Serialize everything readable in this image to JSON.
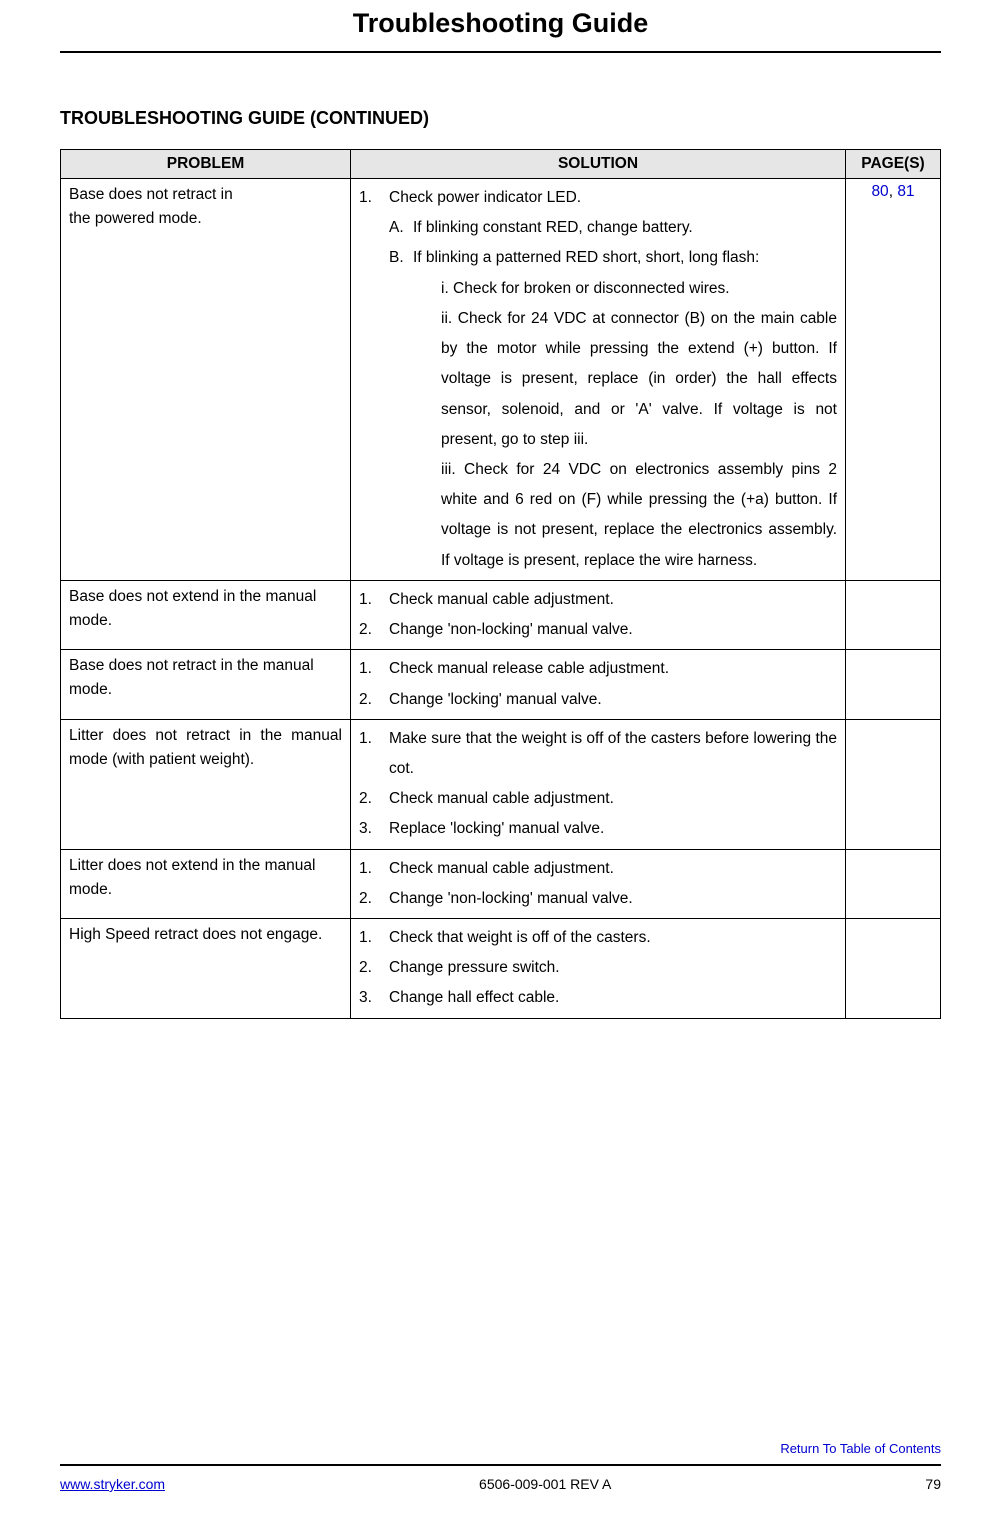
{
  "title": "Troubleshooting Guide",
  "subtitle": "TROUBLESHOOTING GUIDE (CONTINUED)",
  "table": {
    "headers": {
      "problem": "PROBLEM",
      "solution": "SOLUTION",
      "pages": "PAGE(S)"
    },
    "rows": [
      {
        "problem": "Base does not retract in the powered mode.",
        "pages": [
          "80",
          "81"
        ],
        "solution_html": true
      },
      {
        "problem": "Base does not extend in the manual mode.",
        "solutions": [
          "Check manual cable adjustment.",
          "Change 'non-locking' manual valve."
        ],
        "pages": []
      },
      {
        "problem": "Base does not retract in the manual mode.",
        "solutions": [
          "Check manual release cable adjustment.",
          "Change 'locking' manual valve."
        ],
        "pages": []
      },
      {
        "problem": "Litter does not retract in the manual mode (with patient weight).",
        "solutions": [
          "Make sure that the weight is off of the casters before lowering the cot.",
          "Check manual cable adjustment.",
          "Replace 'locking' manual valve."
        ],
        "justify_first": true,
        "pages": []
      },
      {
        "problem": "Litter does not extend in the manual mode.",
        "solutions": [
          "Check manual cable adjustment.",
          "Change 'non-locking' manual valve."
        ],
        "pages": []
      },
      {
        "problem": "High Speed retract does not engage.",
        "solutions": [
          "Check that weight is off of the casters.",
          "Change pressure switch.",
          "Change hall effect cable."
        ],
        "pages": []
      }
    ]
  },
  "row0_solution": {
    "item1": "Check power indicator LED.",
    "A": "If blinking constant RED, change battery.",
    "B": "If blinking a patterned RED short, short, long flash:",
    "i": "i.   Check for broken or disconnected wires.",
    "ii": "ii.  Check for 24 VDC at connector (B) on the main cable by the motor while pressing the extend (+) button.  If voltage is present, replace (in order) the hall effects sensor, solenoid, and or 'A' valve.  If voltage is not present, go to step iii.",
    "iii": "iii.  Check for 24 VDC on electronics assembly pins 2 white and 6 red on (F) while pressing the (+a) button.  If voltage is not present, replace the electronics assembly.  If voltage is present, replace the wire harness."
  },
  "footer": {
    "return_link": "Return To Table of Contents",
    "url": "www.stryker.com",
    "doc_id": "6506-009-001 REV A",
    "page_num": "79"
  },
  "colors": {
    "link": "#0000d0",
    "header_bg": "#e6e6e6",
    "text": "#000000",
    "background": "#ffffff"
  }
}
